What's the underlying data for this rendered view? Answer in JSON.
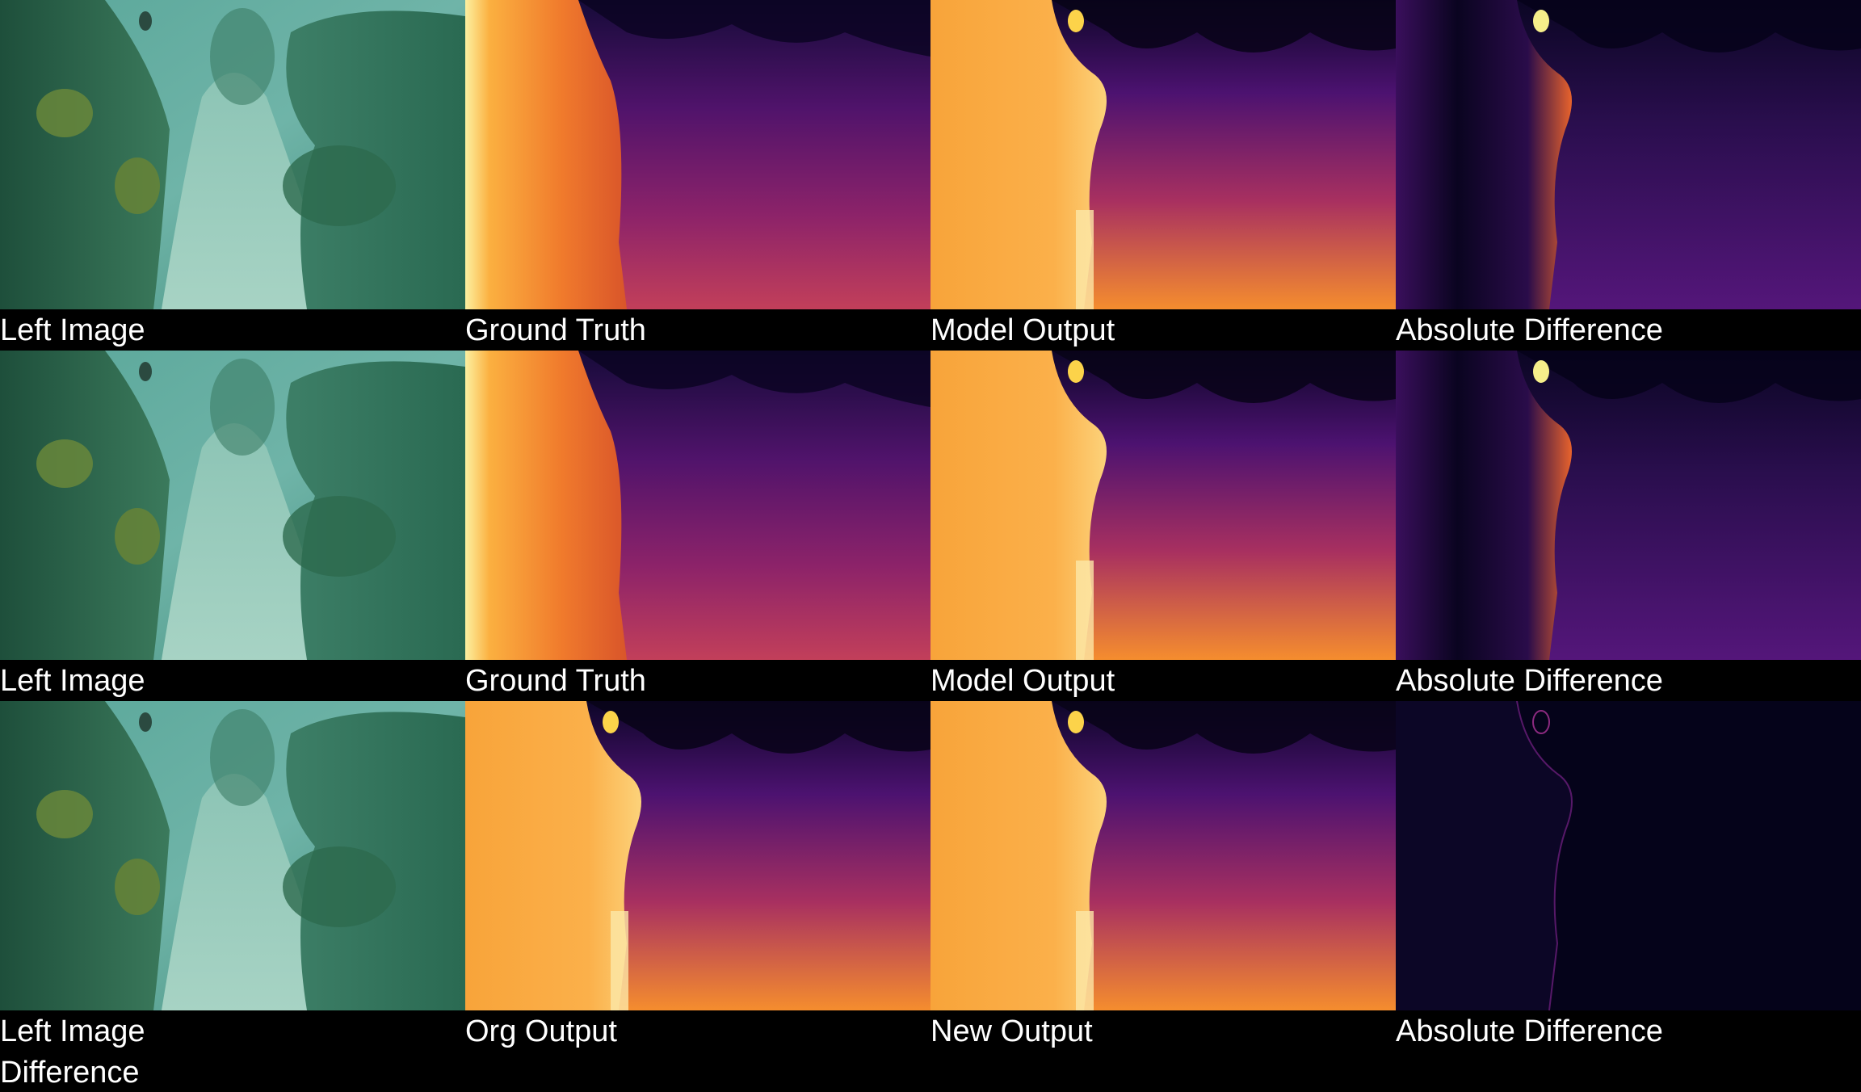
{
  "rows": [
    {
      "labels": [
        "Left Image",
        "Ground Truth",
        "Model Output",
        "Absolute Difference"
      ]
    },
    {
      "labels": [
        "Left Image",
        "Ground Truth",
        "Model Output",
        "Absolute Difference"
      ]
    },
    {
      "labels": [
        "Left Image",
        "Org Output",
        "New Output",
        "Absolute Difference"
      ]
    }
  ],
  "footer_label": "Difference",
  "panels": {
    "underwater_photo": "underwater-rocky-seabed-photo",
    "depth_map": "inferno-colormap-depth-map",
    "difference_map": "inferno-colormap-error-map"
  }
}
